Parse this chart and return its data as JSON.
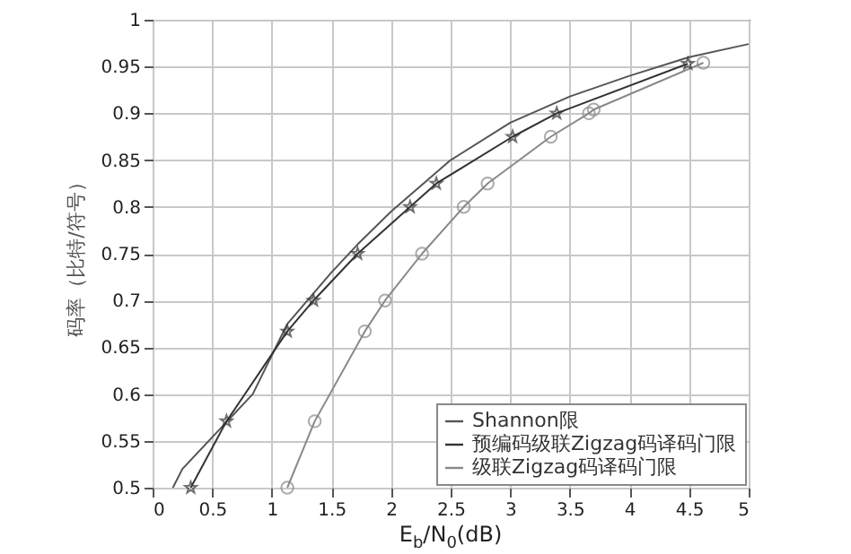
{
  "chart_data": {
    "type": "line",
    "xlabel": "E$_{b}$/N$_{0}$(dB)",
    "ylabel": "码率（比特/符号）",
    "xlim": [
      0,
      5
    ],
    "xticks": [
      0,
      0.5,
      1,
      1.5,
      2,
      2.5,
      3,
      3.5,
      4,
      4.5,
      5
    ],
    "ylim": [
      0.5,
      1
    ],
    "yticks": [
      0.5,
      0.55,
      0.6,
      0.65,
      0.7,
      0.75,
      0.8,
      0.85,
      0.9,
      0.95,
      1
    ],
    "grid": true,
    "legend": "bottom right",
    "line_style": "solid",
    "series": [
      {
        "name": "Shannon限",
        "color": "#555555",
        "marker": "none",
        "x": [
          0.17,
          0.25,
          0.84,
          1.13,
          1.5,
          1.72,
          2.0,
          2.5,
          3.0,
          3.5,
          4.0,
          4.5,
          5.0
        ],
        "values": [
          0.5,
          0.52,
          0.6,
          0.675,
          0.73,
          0.76,
          0.795,
          0.85,
          0.89,
          0.918,
          0.94,
          0.96,
          0.974
        ]
      },
      {
        "name": "预编码级联Zigzag码译码门限",
        "color": "#333333",
        "marker": "star",
        "x": [
          0.32,
          0.62,
          1.13,
          1.35,
          1.72,
          2.16,
          2.38,
          3.02,
          3.39,
          4.49
        ],
        "values": [
          0.5,
          0.571,
          0.667,
          0.7,
          0.75,
          0.8,
          0.825,
          0.875,
          0.9,
          0.953
        ]
      },
      {
        "name": "级联Zigzag码译码门限",
        "color": "#888888",
        "marker": "circle",
        "x": [
          1.13,
          1.36,
          1.78,
          1.95,
          2.26,
          2.61,
          2.81,
          3.34,
          3.66,
          3.7,
          4.62
        ],
        "values": [
          0.5,
          0.571,
          0.667,
          0.7,
          0.75,
          0.8,
          0.825,
          0.875,
          0.9,
          0.904,
          0.954
        ]
      }
    ]
  }
}
